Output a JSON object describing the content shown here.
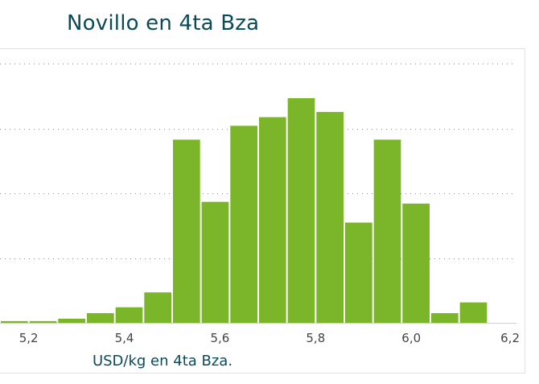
{
  "chart_data": {
    "type": "bar",
    "title": "Novillo en 4ta Bza",
    "xlabel": "USD/kg en 4ta Bza.",
    "ylabel": "",
    "x_ticks": [
      "5,2",
      "5,4",
      "5,6",
      "5,8",
      "6,0",
      "6,2"
    ],
    "x_tick_values": [
      5.2,
      5.4,
      5.6,
      5.8,
      6.0,
      6.2
    ],
    "xlim": [
      5.14,
      6.22
    ],
    "bin_width": 0.06,
    "bins": [
      {
        "start": 5.14,
        "end": 5.2,
        "value": 0.5
      },
      {
        "start": 5.2,
        "end": 5.26,
        "value": 0.5
      },
      {
        "start": 5.26,
        "end": 5.32,
        "value": 1.2
      },
      {
        "start": 5.32,
        "end": 5.38,
        "value": 2.8
      },
      {
        "start": 5.38,
        "end": 5.44,
        "value": 4.5
      },
      {
        "start": 5.44,
        "end": 5.5,
        "value": 8.8
      },
      {
        "start": 5.5,
        "end": 5.56,
        "value": 53.0
      },
      {
        "start": 5.56,
        "end": 5.62,
        "value": 35.0
      },
      {
        "start": 5.62,
        "end": 5.68,
        "value": 57.0
      },
      {
        "start": 5.68,
        "end": 5.74,
        "value": 59.5
      },
      {
        "start": 5.74,
        "end": 5.8,
        "value": 65.0
      },
      {
        "start": 5.8,
        "end": 5.86,
        "value": 61.0
      },
      {
        "start": 5.86,
        "end": 5.92,
        "value": 29.0
      },
      {
        "start": 5.92,
        "end": 5.98,
        "value": 53.0
      },
      {
        "start": 5.98,
        "end": 6.04,
        "value": 34.5
      },
      {
        "start": 6.04,
        "end": 6.1,
        "value": 2.8
      },
      {
        "start": 6.1,
        "end": 6.16,
        "value": 5.9
      }
    ],
    "ylim": [
      0,
      75
    ],
    "y_gridlines": [
      18.75,
      37.5,
      56.25,
      75
    ],
    "grid": "dotted horizontal",
    "y_tick_labels_visible": false,
    "bar_color": "#7ab52a",
    "title_color": "#0b4a5a"
  }
}
